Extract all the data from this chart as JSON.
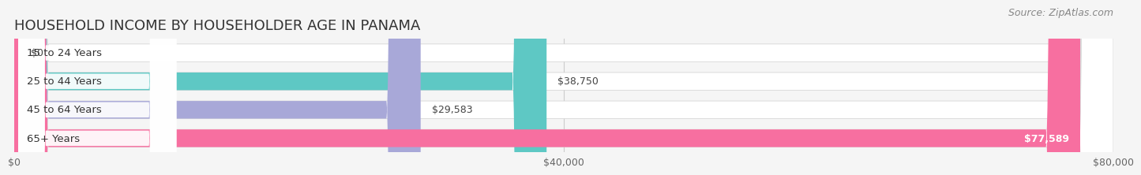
{
  "title": "HOUSEHOLD INCOME BY HOUSEHOLDER AGE IN PANAMA",
  "source": "Source: ZipAtlas.com",
  "categories": [
    "15 to 24 Years",
    "25 to 44 Years",
    "45 to 64 Years",
    "65+ Years"
  ],
  "values": [
    0,
    38750,
    29583,
    77589
  ],
  "bar_colors": [
    "#c9a8d4",
    "#5ec8c4",
    "#a8a8d8",
    "#f76fa0"
  ],
  "value_labels": [
    "$0",
    "$38,750",
    "$29,583",
    "$77,589"
  ],
  "x_ticks": [
    0,
    40000,
    80000
  ],
  "x_tick_labels": [
    "$0",
    "$40,000",
    "$80,000"
  ],
  "xlim": [
    0,
    80000
  ],
  "title_fontsize": 13,
  "source_fontsize": 9,
  "label_fontsize": 9.5,
  "value_fontsize": 9,
  "tick_fontsize": 9,
  "background_color": "#f5f5f5",
  "bar_bg_color": "#e8e8e8"
}
